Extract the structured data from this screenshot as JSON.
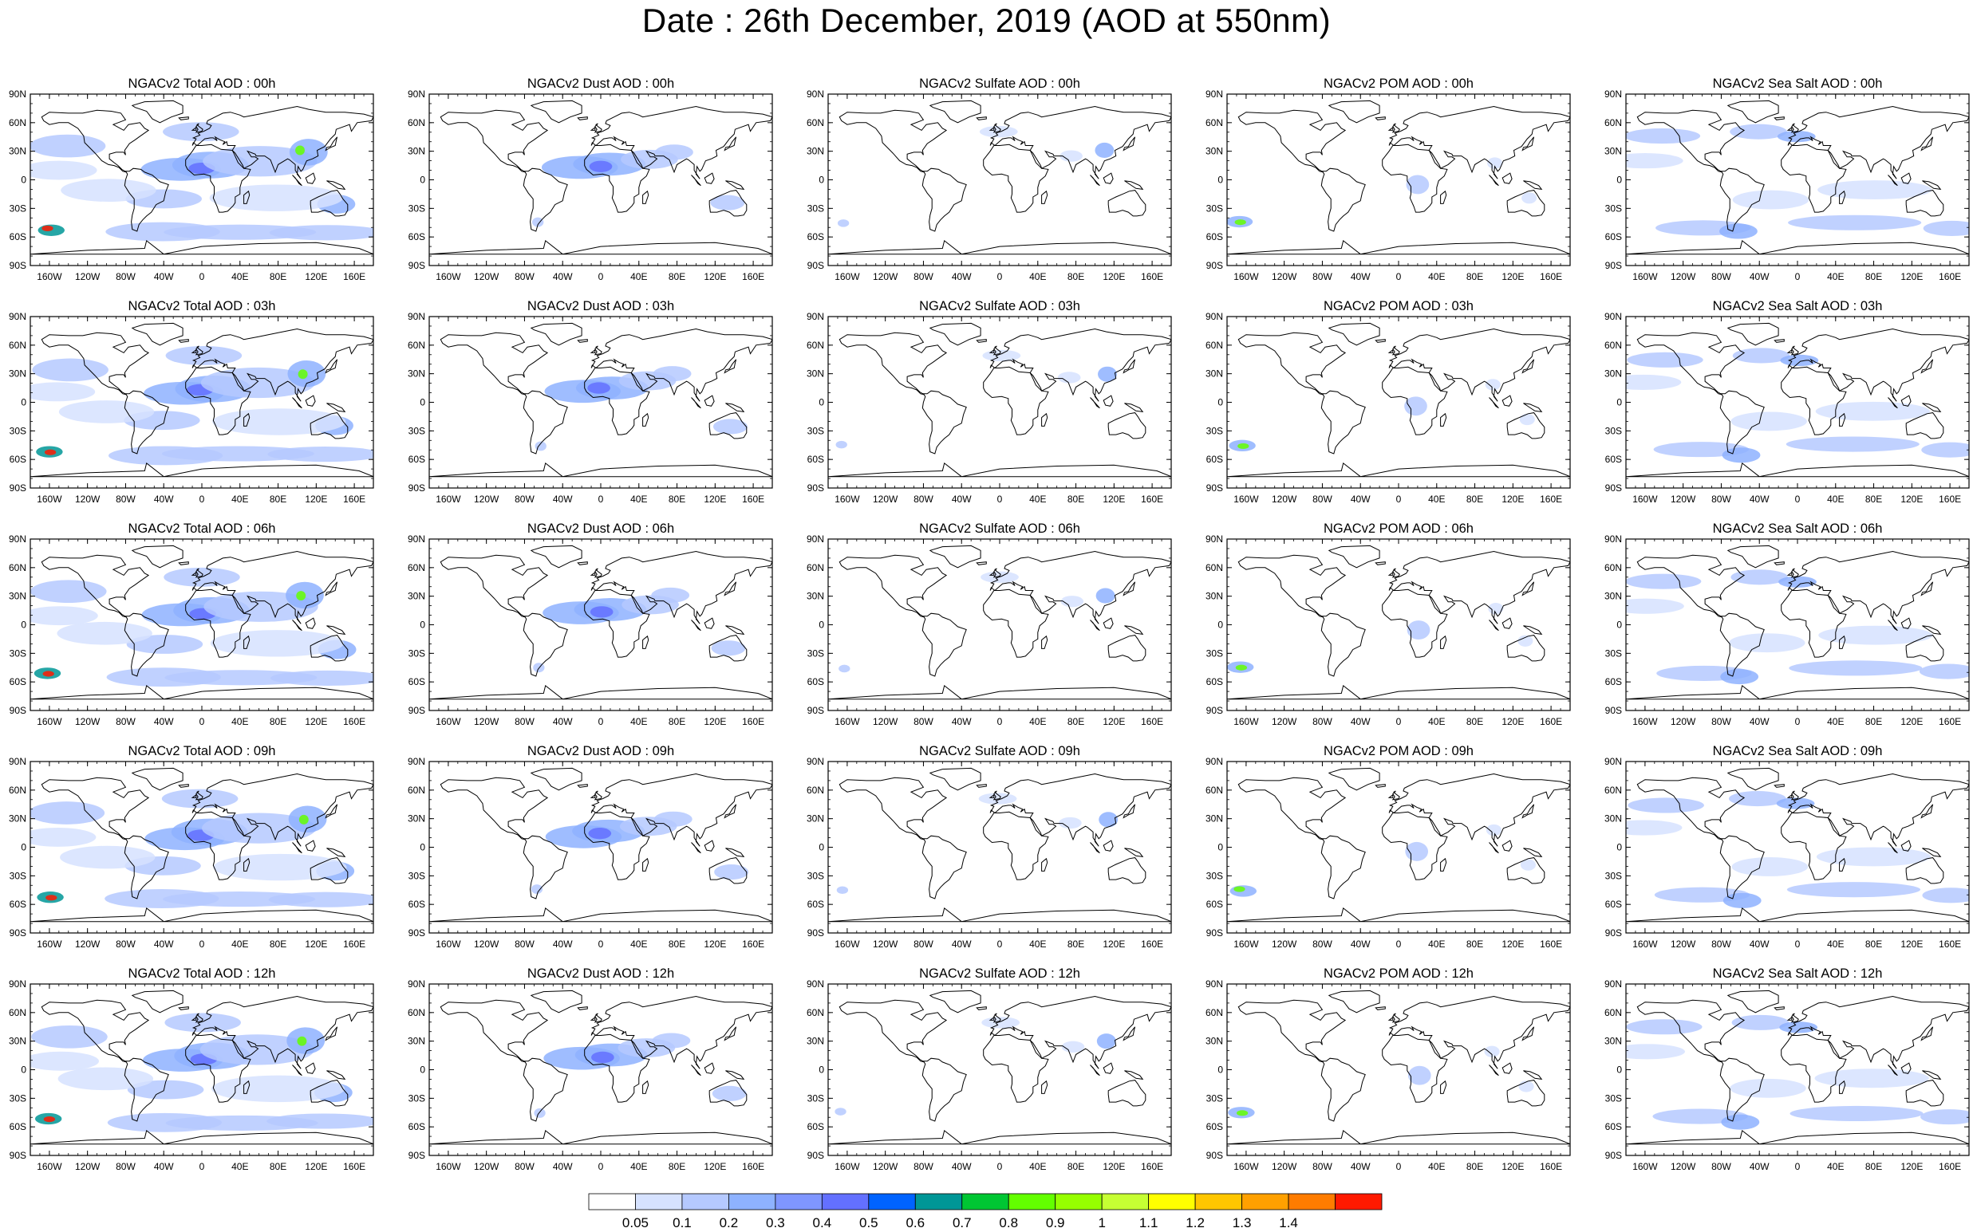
{
  "title": "Date : 26th December, 2019 (AOD at 550nm)",
  "panel_titles": [
    [
      "NGACv2 Total AOD : 00h",
      "NGACv2 Dust AOD : 00h",
      "NGACv2 Sulfate AOD : 00h",
      "NGACv2 POM AOD : 00h",
      "NGACv2 Sea Salt AOD : 00h"
    ],
    [
      "NGACv2 Total AOD : 03h",
      "NGACv2 Dust AOD : 03h",
      "NGACv2 Sulfate AOD : 03h",
      "NGACv2 POM AOD : 03h",
      "NGACv2 Sea Salt AOD : 03h"
    ],
    [
      "NGACv2 Total AOD : 06h",
      "NGACv2 Dust AOD : 06h",
      "NGACv2 Sulfate AOD : 06h",
      "NGACv2 POM AOD : 06h",
      "NGACv2 Sea Salt AOD : 06h"
    ],
    [
      "NGACv2 Total AOD : 09h",
      "NGACv2 Dust AOD : 09h",
      "NGACv2 Sulfate AOD : 09h",
      "NGACv2 POM AOD : 09h",
      "NGACv2 Sea Salt  AOD : 09h"
    ],
    [
      "NGACv2 Total AOD : 12h",
      "NGACv2 Dust AOD : 12h",
      "NGACv2 Sulfate AOD : 12h",
      "NGACv2 POM  AOD : 12h",
      "NGACv2 Sea Salt  AOD : 12h"
    ]
  ],
  "chart_data": {
    "type": "heatmap",
    "title": "Date : 26th December, 2019 (AOD at 550nm)",
    "rows": 5,
    "cols": 5,
    "y_ticks": [
      "90N",
      "60N",
      "30N",
      "0",
      "30S",
      "60S",
      "90S"
    ],
    "y_range": [
      -90,
      90
    ],
    "x_ticks": [
      "160W",
      "120W",
      "80W",
      "40W",
      "0",
      "40E",
      "80E",
      "120E",
      "160E"
    ],
    "x_range": [
      -180,
      180
    ],
    "species": [
      "Total",
      "Dust",
      "Sulfate",
      "POM",
      "Sea Salt"
    ],
    "forecast_hours": [
      "00h",
      "03h",
      "06h",
      "09h",
      "12h"
    ],
    "colorbar": {
      "levels": [
        "0.05",
        "0.1",
        "0.2",
        "0.3",
        "0.4",
        "0.5",
        "0.6",
        "0.7",
        "0.8",
        "0.9",
        "1",
        "1.1",
        "1.2",
        "1.3",
        "1.4"
      ],
      "colors": [
        "#ffffff",
        "#d6e2ff",
        "#b5c9ff",
        "#8eb2ff",
        "#7f96ff",
        "#6370ff",
        "#0063ff",
        "#009696",
        "#00c633",
        "#63ff00",
        "#96ff00",
        "#c6ff33",
        "#ffff00",
        "#ffc600",
        "#ffa000",
        "#ff7c00",
        "#ff1900"
      ]
    },
    "grid": false,
    "legend_placement": "bottom"
  }
}
